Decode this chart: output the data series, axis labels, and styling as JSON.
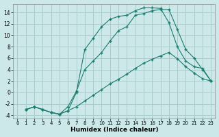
{
  "xlabel": "Humidex (Indice chaleur)",
  "bg_color": "#cce8e8",
  "grid_color": "#aacccc",
  "line_color": "#1a7a6e",
  "xlim": [
    -0.5,
    23.5
  ],
  "ylim": [
    -4.5,
    15.5
  ],
  "xticks": [
    0,
    1,
    2,
    3,
    4,
    5,
    6,
    7,
    8,
    9,
    10,
    11,
    12,
    13,
    14,
    15,
    16,
    17,
    18,
    19,
    20,
    21,
    22,
    23
  ],
  "yticks": [
    -4,
    -2,
    0,
    2,
    4,
    6,
    8,
    10,
    12,
    14
  ],
  "line1_x": [
    1,
    2,
    3,
    4,
    5,
    6,
    7,
    8,
    9,
    10,
    11,
    12,
    13,
    14,
    15,
    16,
    17,
    18,
    19,
    20,
    21,
    22,
    23
  ],
  "line1_y": [
    -3.0,
    -2.5,
    -3.0,
    -3.5,
    -3.8,
    -3.2,
    -2.5,
    -1.5,
    -0.5,
    0.5,
    1.5,
    2.3,
    3.2,
    4.2,
    5.1,
    5.8,
    6.4,
    7.0,
    5.9,
    4.5,
    3.4,
    2.4,
    2.0
  ],
  "line2_x": [
    1,
    2,
    3,
    4,
    5,
    6,
    7,
    8,
    9,
    10,
    11,
    12,
    13,
    14,
    15,
    16,
    17,
    18,
    19,
    20,
    21,
    22,
    23
  ],
  "line2_y": [
    -3.0,
    -2.5,
    -3.0,
    -3.5,
    -3.8,
    -3.2,
    0.0,
    7.5,
    9.5,
    11.5,
    12.8,
    13.3,
    13.5,
    14.3,
    14.8,
    14.8,
    14.7,
    12.2,
    8.0,
    5.5,
    4.5,
    4.2,
    2.0
  ],
  "line3_x": [
    1,
    2,
    3,
    4,
    5,
    6,
    7,
    8,
    9,
    10,
    11,
    12,
    13,
    14,
    15,
    16,
    17,
    18,
    19,
    20,
    21,
    22,
    23
  ],
  "line3_y": [
    -3.0,
    -2.5,
    -3.0,
    -3.5,
    -3.8,
    -2.5,
    0.2,
    4.0,
    5.5,
    7.0,
    9.0,
    10.8,
    11.5,
    13.5,
    13.8,
    14.3,
    14.5,
    14.5,
    11.0,
    7.5,
    6.0,
    4.0,
    2.0
  ]
}
